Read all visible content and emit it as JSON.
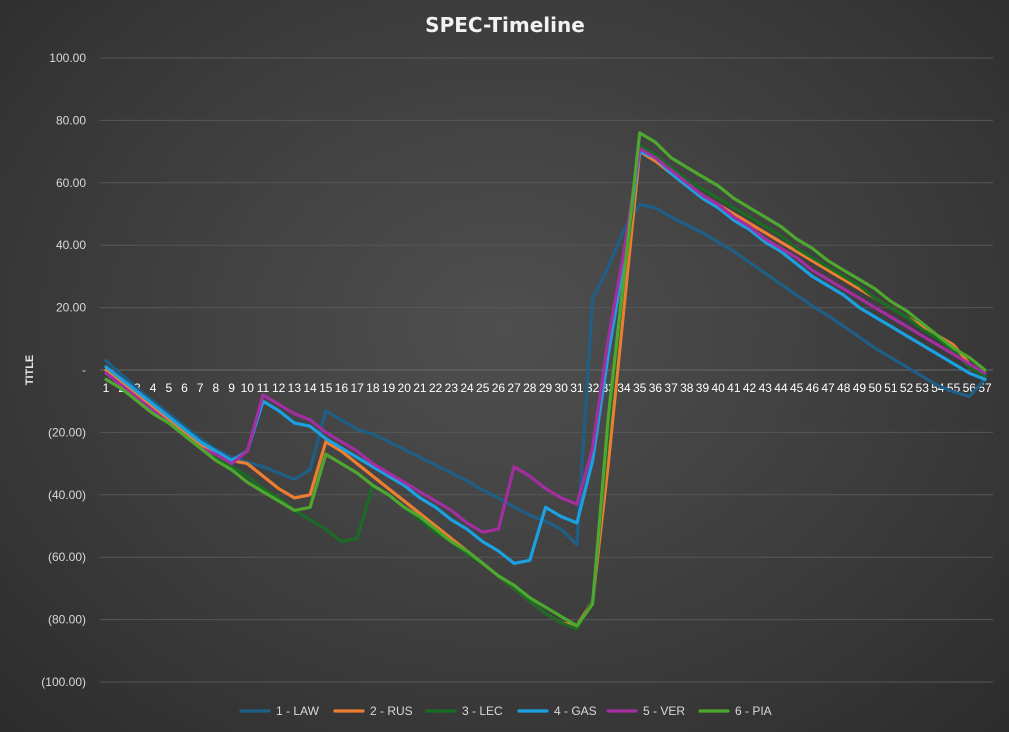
{
  "chart_data": {
    "type": "line",
    "title": "SPEC-Timeline",
    "ylabel": "TITLE",
    "xlabel": "",
    "ylim": [
      -100,
      100
    ],
    "y_ticks": [
      100,
      80,
      60,
      40,
      20,
      0,
      -20,
      -40,
      -60,
      -80,
      -100
    ],
    "y_tick_labels": [
      "100.00",
      "80.00",
      "60.00",
      "40.00",
      "20.00",
      "-",
      "(20.00)",
      "(40.00)",
      "(60.00)",
      "(80.00)",
      "(100.00)"
    ],
    "grid": "horizontal",
    "legend_position": "bottom",
    "x": [
      1,
      2,
      3,
      4,
      5,
      6,
      7,
      8,
      9,
      10,
      11,
      12,
      13,
      14,
      15,
      16,
      17,
      18,
      19,
      20,
      21,
      22,
      23,
      24,
      25,
      26,
      27,
      28,
      29,
      30,
      31,
      32,
      33,
      34,
      35,
      36,
      37,
      38,
      39,
      40,
      41,
      42,
      43,
      44,
      45,
      46,
      47,
      48,
      49,
      50,
      51,
      52,
      53,
      54,
      55,
      56,
      57
    ],
    "series": [
      {
        "name": "1 - LAW",
        "color": "#1f5f86",
        "values": [
          3,
          -1.5,
          -6,
          -10,
          -14,
          -18,
          -22,
          -25.5,
          -28,
          -29.5,
          -31,
          -33,
          -35,
          -32,
          -13,
          -16,
          -19,
          -20.5,
          -23,
          -25.5,
          -28,
          -30.5,
          -33,
          -35.5,
          -38.5,
          -41,
          -44,
          -46.5,
          -48.5,
          -51,
          -56,
          23,
          33,
          45,
          53,
          52,
          49,
          46.5,
          44,
          41,
          38,
          34.5,
          31,
          27.5,
          24,
          20.5,
          17.5,
          14,
          10.5,
          7,
          4,
          1,
          -2,
          -5,
          -7,
          -8.5,
          -3
        ]
      },
      {
        "name": "2 - RUS",
        "color": "#ed7d31",
        "values": [
          0,
          -4,
          -8,
          -12,
          -16,
          -20,
          -24,
          -27,
          -29,
          -30,
          -34,
          -38,
          -41,
          -40,
          -23,
          -26,
          -30,
          -34,
          -38,
          -42,
          -46,
          -50,
          -54,
          -58,
          -62,
          -66,
          -70,
          -74,
          -78,
          -81,
          -82,
          -74,
          -30,
          20,
          70,
          67,
          63,
          59,
          56,
          53,
          50,
          47,
          44,
          41,
          38,
          35,
          32,
          29,
          26,
          23,
          20,
          17,
          14,
          11,
          8,
          2,
          -2
        ]
      },
      {
        "name": "3 - LEC",
        "color": "#1a6b24",
        "values": [
          -1,
          -5,
          -9,
          -13,
          -17,
          -21,
          -25,
          -28,
          -31,
          -34,
          -38,
          -41,
          -45,
          -48,
          -51,
          -55,
          -54,
          -37,
          -40,
          -44,
          -48,
          -52,
          -55,
          -59,
          -62,
          -66,
          -70,
          -74,
          -78,
          -81,
          -83,
          -74,
          -20,
          30,
          72,
          69,
          65,
          61,
          58,
          55,
          52,
          49,
          46,
          43,
          39,
          36,
          33,
          30,
          27,
          23,
          20,
          17,
          13,
          10,
          6,
          1,
          -2
        ]
      },
      {
        "name": "4 - GAS",
        "color": "#1ba1e2",
        "values": [
          1,
          -3,
          -7,
          -11,
          -15,
          -19,
          -23,
          -26,
          -29,
          -26,
          -10,
          -13,
          -17,
          -18,
          -22,
          -25,
          -28,
          -31,
          -34,
          -37,
          -41,
          -44,
          -48,
          -51,
          -55,
          -58,
          -62,
          -61,
          -44,
          -47,
          -49,
          -29,
          5,
          35,
          70,
          68,
          63,
          59,
          55,
          52,
          48,
          45,
          41,
          38,
          34,
          30,
          27,
          24,
          20,
          17,
          14,
          11,
          8,
          5,
          2,
          -1,
          -3
        ]
      },
      {
        "name": "5 - VER",
        "color": "#a22ea0",
        "values": [
          -1,
          -5,
          -9,
          -13,
          -17,
          -21,
          -25,
          -27,
          -30,
          -26,
          -8,
          -11,
          -14,
          -16,
          -20,
          -23,
          -26,
          -30,
          -33,
          -36,
          -39,
          -42,
          -45,
          -49,
          -52,
          -51,
          -31,
          -34,
          -38,
          -41,
          -43,
          -25,
          10,
          38,
          71,
          68,
          64,
          60,
          56,
          53,
          49,
          46,
          42,
          39,
          36,
          32,
          29,
          26,
          23,
          20,
          17,
          14,
          11,
          8,
          5,
          2,
          -1
        ]
      },
      {
        "name": "6 - PIA",
        "color": "#4ea72e",
        "values": [
          -3,
          -6,
          -10,
          -14,
          -17,
          -21,
          -25,
          -29,
          -32,
          -36,
          -39,
          -42,
          -45,
          -44,
          -27,
          -30,
          -33,
          -37,
          -40,
          -44,
          -47,
          -51,
          -55,
          -58,
          -62,
          -66,
          -69,
          -73,
          -76,
          -79,
          -82,
          -75,
          -15,
          30,
          76,
          73,
          68,
          65,
          62,
          59,
          55,
          52,
          49,
          46,
          42,
          39,
          35,
          32,
          29,
          26,
          22,
          19,
          15,
          11,
          7,
          4,
          0
        ]
      }
    ]
  }
}
